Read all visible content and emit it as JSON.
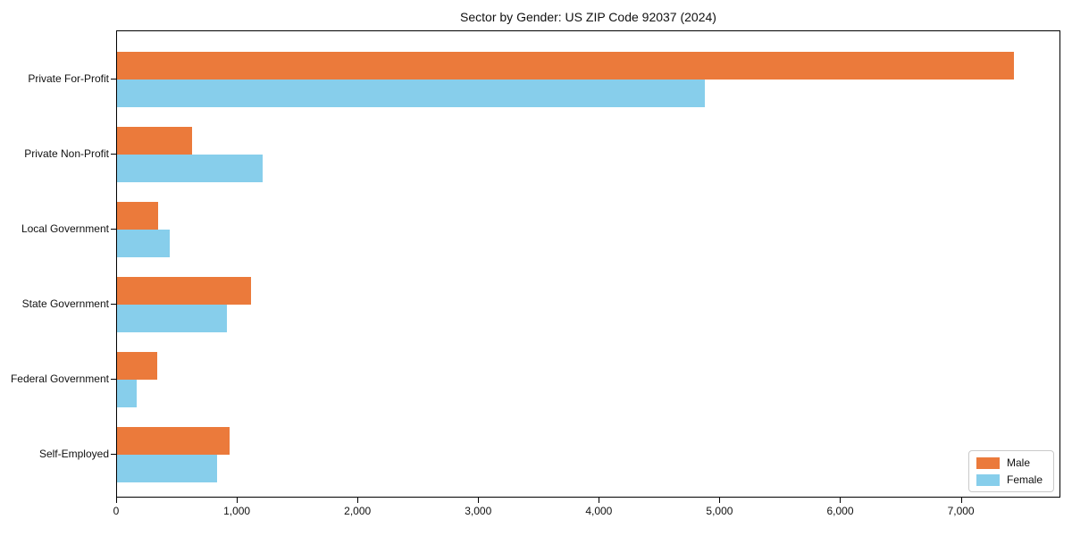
{
  "chart_data": {
    "type": "bar",
    "orientation": "horizontal",
    "title": "Sector by Gender: US ZIP Code 92037 (2024)",
    "xlabel": "",
    "ylabel": "",
    "grid": false,
    "legend_position": "lower right",
    "categories": [
      "Private For-Profit",
      "Private Non-Profit",
      "Local Government",
      "State Government",
      "Federal Government",
      "Self-Employed"
    ],
    "series": [
      {
        "name": "Male",
        "color": "#eb7a3b",
        "values": [
          7430,
          620,
          340,
          1110,
          330,
          930
        ]
      },
      {
        "name": "Female",
        "color": "#87ceeb",
        "values": [
          4870,
          1210,
          440,
          910,
          160,
          830
        ]
      }
    ],
    "xlim": [
      0,
      7810
    ],
    "xticks": [
      {
        "value": 0,
        "label": "0"
      },
      {
        "value": 1000,
        "label": "1,000"
      },
      {
        "value": 2000,
        "label": "2,000"
      },
      {
        "value": 3000,
        "label": "3,000"
      },
      {
        "value": 4000,
        "label": "4,000"
      },
      {
        "value": 5000,
        "label": "5,000"
      },
      {
        "value": 6000,
        "label": "6,000"
      },
      {
        "value": 7000,
        "label": "7,000"
      }
    ]
  }
}
